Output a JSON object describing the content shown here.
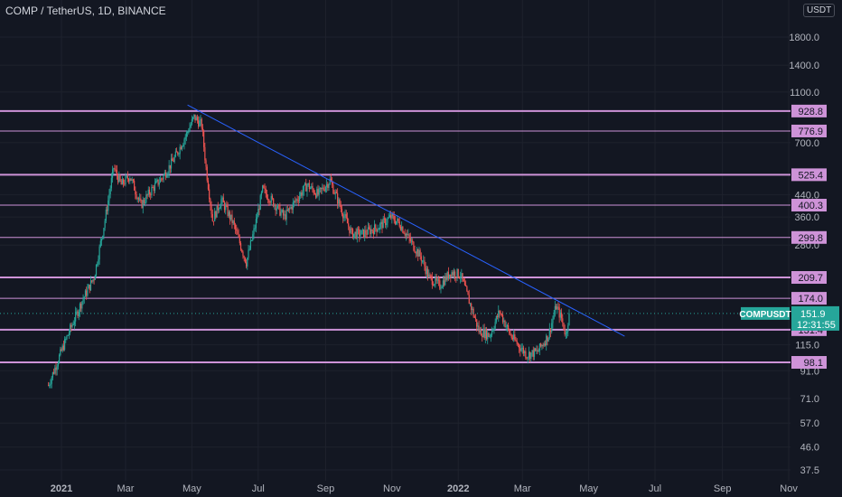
{
  "header": {
    "title": "COMP / TetherUS, 1D, BINANCE",
    "currency": "USDT"
  },
  "colors": {
    "background": "#131722",
    "grid": "#1e222d",
    "candle_up": "#26a69a",
    "candle_down": "#ef5350",
    "level_line": "#ce93d8",
    "level_label_bg": "#ce93d8",
    "trendline": "#2962ff",
    "price_line": "#26a69a",
    "axis_text": "#b2b5be"
  },
  "chart_data": {
    "type": "candlestick",
    "symbol": "COMPUSDT",
    "scale": "log",
    "grid": true,
    "y_ticks": [
      "37.5",
      "46.0",
      "57.0",
      "71.0",
      "91.0",
      "115.0",
      "280.0",
      "360.0",
      "440.0",
      "700.0",
      "1100.0",
      "1400.0",
      "1800.0"
    ],
    "x_ticks": [
      "2021",
      "Mar",
      "May",
      "Jul",
      "Sep",
      "Nov",
      "2022",
      "Mar",
      "May",
      "Jul",
      "Sep",
      "Nov"
    ],
    "horizontal_levels": [
      {
        "value": 928.8,
        "label": "928.8",
        "thick": true
      },
      {
        "value": 776.9,
        "label": "776.9",
        "thick": false
      },
      {
        "value": 525.4,
        "label": "525.4",
        "thick": true
      },
      {
        "value": 400.3,
        "label": "400.3",
        "thick": false
      },
      {
        "value": 299.8,
        "label": "299.8",
        "thick": false
      },
      {
        "value": 209.7,
        "label": "209.7",
        "thick": true
      },
      {
        "value": 174.0,
        "label": "174.0",
        "thick": false
      },
      {
        "value": 131.4,
        "label": "131.4",
        "thick": true
      },
      {
        "value": 98.1,
        "label": "98.1",
        "thick": true
      }
    ],
    "trendline": {
      "start": [
        "2021-04-27",
        980
      ],
      "end": [
        "2022-06-03",
        124
      ]
    },
    "last_price": {
      "symbol": "COMPUSDT",
      "value": "151.9",
      "countdown": "12:31:55"
    },
    "price_path": [
      [
        "2020-12-20",
        80
      ],
      [
        "2021-01-05",
        120
      ],
      [
        "2021-01-20",
        170
      ],
      [
        "2021-01-31",
        210
      ],
      [
        "2021-02-10",
        350
      ],
      [
        "2021-02-18",
        560
      ],
      [
        "2021-02-25",
        480
      ],
      [
        "2021-03-05",
        520
      ],
      [
        "2021-03-15",
        400
      ],
      [
        "2021-03-25",
        460
      ],
      [
        "2021-04-05",
        520
      ],
      [
        "2021-04-15",
        610
      ],
      [
        "2021-04-25",
        740
      ],
      [
        "2021-05-03",
        880
      ],
      [
        "2021-05-10",
        820
      ],
      [
        "2021-05-14",
        560
      ],
      [
        "2021-05-20",
        350
      ],
      [
        "2021-05-28",
        420
      ],
      [
        "2021-06-08",
        340
      ],
      [
        "2021-06-20",
        240
      ],
      [
        "2021-06-28",
        330
      ],
      [
        "2021-07-05",
        460
      ],
      [
        "2021-07-15",
        410
      ],
      [
        "2021-07-25",
        360
      ],
      [
        "2021-08-05",
        420
      ],
      [
        "2021-08-15",
        480
      ],
      [
        "2021-08-25",
        440
      ],
      [
        "2021-09-05",
        500
      ],
      [
        "2021-09-15",
        390
      ],
      [
        "2021-09-25",
        310
      ],
      [
        "2021-10-05",
        310
      ],
      [
        "2021-10-20",
        330
      ],
      [
        "2021-10-31",
        360
      ],
      [
        "2021-11-08",
        340
      ],
      [
        "2021-11-18",
        290
      ],
      [
        "2021-11-28",
        250
      ],
      [
        "2021-12-05",
        210
      ],
      [
        "2021-12-15",
        195
      ],
      [
        "2021-12-25",
        220
      ],
      [
        "2022-01-03",
        215
      ],
      [
        "2022-01-10",
        175
      ],
      [
        "2022-01-20",
        130
      ],
      [
        "2022-01-30",
        125
      ],
      [
        "2022-02-08",
        155
      ],
      [
        "2022-02-18",
        125
      ],
      [
        "2022-02-25",
        115
      ],
      [
        "2022-03-05",
        105
      ],
      [
        "2022-03-15",
        108
      ],
      [
        "2022-03-25",
        125
      ],
      [
        "2022-04-01",
        162
      ],
      [
        "2022-04-06",
        145
      ],
      [
        "2022-04-10",
        125
      ],
      [
        "2022-04-13",
        151.9
      ]
    ]
  }
}
